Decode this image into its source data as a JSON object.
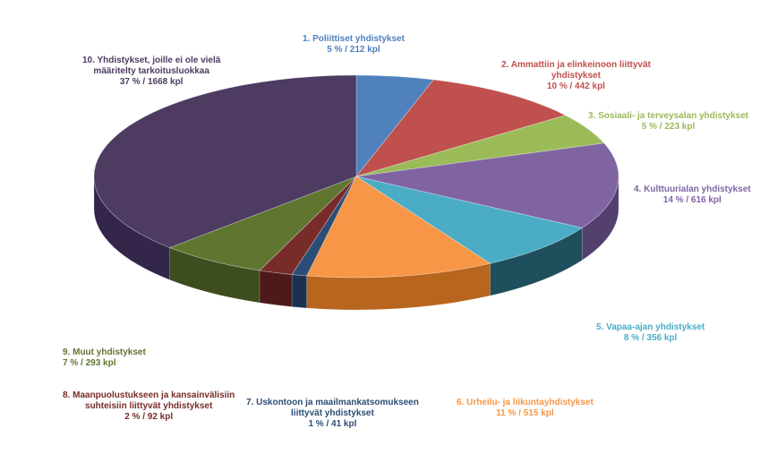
{
  "chart_data": {
    "type": "pie",
    "title": "",
    "style": "3d-exploded-none",
    "slices": [
      {
        "name": "1. Poliittiset yhdistykset",
        "name_lines": [
          "1. Poliittiset yhdistykset"
        ],
        "value": 212,
        "percent": 5,
        "label": "5 % / 212 kpl",
        "color": "#4f81bd",
        "side": "#2e5a8c",
        "label_color": "#4f81bd"
      },
      {
        "name": "2. Ammattiin ja elinkeinoon liittyvät yhdistykset",
        "name_lines": [
          "2. Ammattiin ja elinkeinoon liittyvät",
          "yhdistykset"
        ],
        "value": 442,
        "percent": 10,
        "label": "10 % / 442 kpl",
        "color": "#c0504d",
        "side": "#8a2f2d",
        "label_color": "#c0504d"
      },
      {
        "name": "3. Sosiaali- ja terveysalan yhdistykset",
        "name_lines": [
          "3. Sosiaali- ja terveysalan yhdistykset"
        ],
        "value": 223,
        "percent": 5,
        "label": "5 % / 223 kpl",
        "color": "#9bbb59",
        "side": "#6b8a35",
        "label_color": "#9bbb59"
      },
      {
        "name": "4. Kulttuurialan yhdistykset",
        "name_lines": [
          "4. Kulttuurialan yhdistykset"
        ],
        "value": 616,
        "percent": 14,
        "label": "14 % / 616 kpl",
        "color": "#8064a2",
        "side": "#54406e",
        "label_color": "#8064a2"
      },
      {
        "name": "5. Vapaa-ajan yhdistykset",
        "name_lines": [
          "5. Vapaa-ajan yhdistykset"
        ],
        "value": 356,
        "percent": 8,
        "label": "8 % / 356 kpl",
        "color": "#4bacc6",
        "side": "#1f4e5c",
        "label_color": "#4bacc6"
      },
      {
        "name": "6. Urheilu- ja liikuntayhdistykset",
        "name_lines": [
          "6. Urheilu- ja liikuntayhdistykset"
        ],
        "value": 515,
        "percent": 11,
        "label": "11 % / 515 kpl",
        "color": "#f79646",
        "side": "#b8651e",
        "label_color": "#f79646"
      },
      {
        "name": "7. Uskontoon ja maailmankatsomukseen liittyvät yhdistykset",
        "name_lines": [
          "7. Uskontoon ja maailmankatsomukseen",
          "liittyvät yhdistykset"
        ],
        "value": 41,
        "percent": 1,
        "label": "1 % / 41 kpl",
        "color": "#2c4d75",
        "side": "#1b3150",
        "label_color": "#2c4d75"
      },
      {
        "name": "8. Maanpuolustukseen ja kansainvälisiin suhteisiin liittyvät yhdistykset",
        "name_lines": [
          "8. Maanpuolustukseen ja kansainvälisiin",
          "suhteisiin liittyvät yhdistykset"
        ],
        "value": 92,
        "percent": 2,
        "label": "2 % / 92 kpl",
        "color": "#772c2a",
        "side": "#4e1a19",
        "label_color": "#772c2a"
      },
      {
        "name": "9. Muut yhdistykset",
        "name_lines": [
          "9. Muut yhdistykset"
        ],
        "value": 293,
        "percent": 7,
        "label": "7 % / 293 kpl",
        "color": "#5f7530",
        "side": "#3d4d1d",
        "label_color": "#5f7530"
      },
      {
        "name": "10. Yhdistykset, joille ei ole vielä määritelty tarkoitusluokkaa",
        "name_lines": [
          "10. Yhdistykset, joille ei ole vielä",
          "määritelty tarkoitusluokkaa"
        ],
        "value": 1668,
        "percent": 37,
        "label": "37 % / 1668 kpl",
        "color": "#4d3b62",
        "side": "#33264a",
        "label_color": "#4d3b62"
      }
    ]
  }
}
